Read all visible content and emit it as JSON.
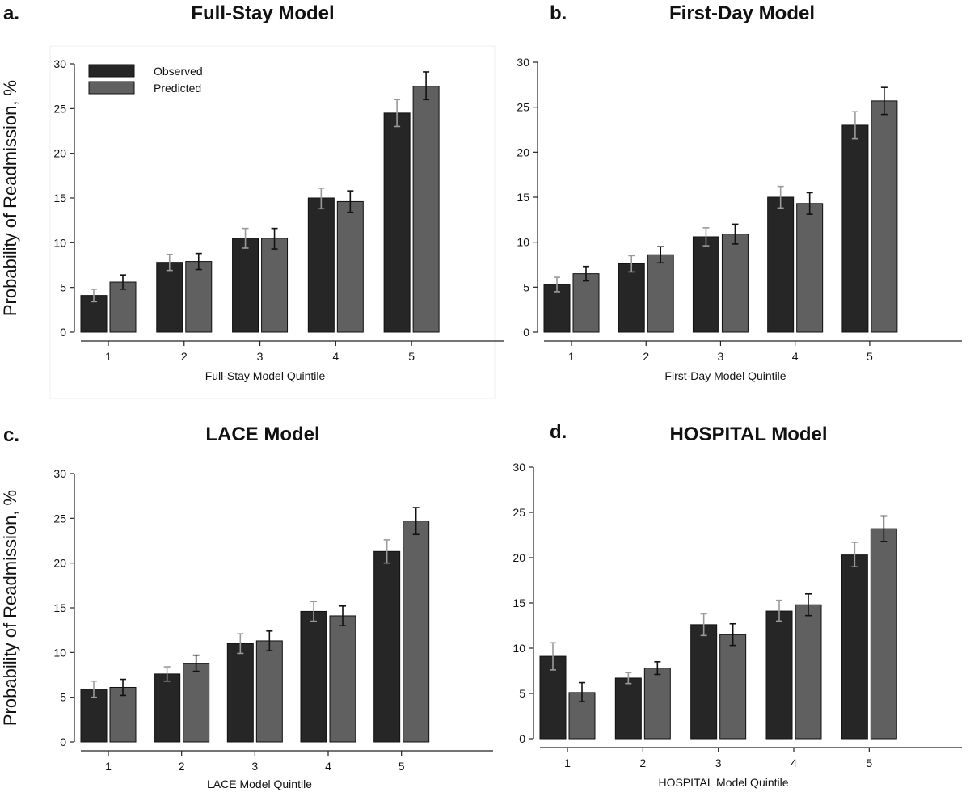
{
  "chart_data": [
    {
      "type": "bar",
      "panel": "a.",
      "title": "Full-Stay Model",
      "xlabel": "Full-Stay Model Quintile",
      "ylabel": "Probability of Readmission, %",
      "categories": [
        "1",
        "2",
        "3",
        "4",
        "5"
      ],
      "ylim": [
        0,
        30
      ],
      "yticks": [
        0,
        5,
        10,
        15,
        20,
        25,
        30
      ],
      "legend": {
        "position": "top-left",
        "entries": [
          "Observed",
          "Predicted"
        ]
      },
      "series": [
        {
          "name": "Observed",
          "color": "#262626",
          "values": [
            4.1,
            7.8,
            10.5,
            15.0,
            24.5
          ],
          "error_low": [
            3.4,
            6.9,
            9.4,
            13.8,
            23.0
          ],
          "error_high": [
            4.8,
            8.7,
            11.6,
            16.1,
            26.0
          ]
        },
        {
          "name": "Predicted",
          "color": "#606060",
          "values": [
            5.6,
            7.9,
            10.5,
            14.6,
            27.5
          ],
          "error_low": [
            4.8,
            7.0,
            9.3,
            13.4,
            26.0
          ],
          "error_high": [
            6.4,
            8.8,
            11.6,
            15.8,
            29.1
          ]
        }
      ]
    },
    {
      "type": "bar",
      "panel": "b.",
      "title": "First-Day Model",
      "xlabel": "First-Day Model Quintile",
      "ylabel": "",
      "categories": [
        "1",
        "2",
        "3",
        "4",
        "5"
      ],
      "ylim": [
        0,
        30
      ],
      "yticks": [
        0,
        5,
        10,
        15,
        20,
        25,
        30
      ],
      "legend": null,
      "series": [
        {
          "name": "Observed",
          "color": "#262626",
          "values": [
            5.3,
            7.6,
            10.6,
            15.0,
            23.0
          ],
          "error_low": [
            4.5,
            6.7,
            9.6,
            13.8,
            21.5
          ],
          "error_high": [
            6.1,
            8.5,
            11.6,
            16.2,
            24.5
          ]
        },
        {
          "name": "Predicted",
          "color": "#606060",
          "values": [
            6.5,
            8.6,
            10.9,
            14.3,
            25.7
          ],
          "error_low": [
            5.7,
            7.7,
            9.8,
            13.1,
            24.2
          ],
          "error_high": [
            7.3,
            9.5,
            12.0,
            15.5,
            27.2
          ]
        }
      ]
    },
    {
      "type": "bar",
      "panel": "c.",
      "title": "LACE Model",
      "xlabel": "LACE Model Quintile",
      "ylabel": "Probability of Readmission, %",
      "categories": [
        "1",
        "2",
        "3",
        "4",
        "5"
      ],
      "ylim": [
        0,
        30
      ],
      "yticks": [
        0,
        5,
        10,
        15,
        20,
        25,
        30
      ],
      "legend": null,
      "series": [
        {
          "name": "Observed",
          "color": "#262626",
          "values": [
            5.9,
            7.6,
            11.0,
            14.6,
            21.3
          ],
          "error_low": [
            5.0,
            6.8,
            9.9,
            13.5,
            20.0
          ],
          "error_high": [
            6.8,
            8.4,
            12.1,
            15.7,
            22.6
          ]
        },
        {
          "name": "Predicted",
          "color": "#606060",
          "values": [
            6.1,
            8.8,
            11.3,
            14.1,
            24.7
          ],
          "error_low": [
            5.2,
            7.9,
            10.2,
            13.0,
            23.2
          ],
          "error_high": [
            7.0,
            9.7,
            12.4,
            15.2,
            26.2
          ]
        }
      ]
    },
    {
      "type": "bar",
      "panel": "d.",
      "title": "HOSPITAL Model",
      "xlabel": "HOSPITAL Model Quintile",
      "ylabel": "",
      "categories": [
        "1",
        "2",
        "3",
        "4",
        "5"
      ],
      "ylim": [
        0,
        30
      ],
      "yticks": [
        0,
        5,
        10,
        15,
        20,
        25,
        30
      ],
      "legend": null,
      "series": [
        {
          "name": "Observed",
          "color": "#262626",
          "values": [
            9.1,
            6.7,
            12.6,
            14.1,
            20.3
          ],
          "error_low": [
            7.6,
            6.1,
            11.4,
            13.0,
            19.0
          ],
          "error_high": [
            10.6,
            7.3,
            13.8,
            15.3,
            21.7
          ]
        },
        {
          "name": "Predicted",
          "color": "#606060",
          "values": [
            5.1,
            7.8,
            11.5,
            14.8,
            23.2
          ],
          "error_low": [
            4.1,
            7.1,
            10.3,
            13.6,
            21.8
          ],
          "error_high": [
            6.2,
            8.5,
            12.7,
            16.0,
            24.6
          ]
        }
      ]
    }
  ]
}
